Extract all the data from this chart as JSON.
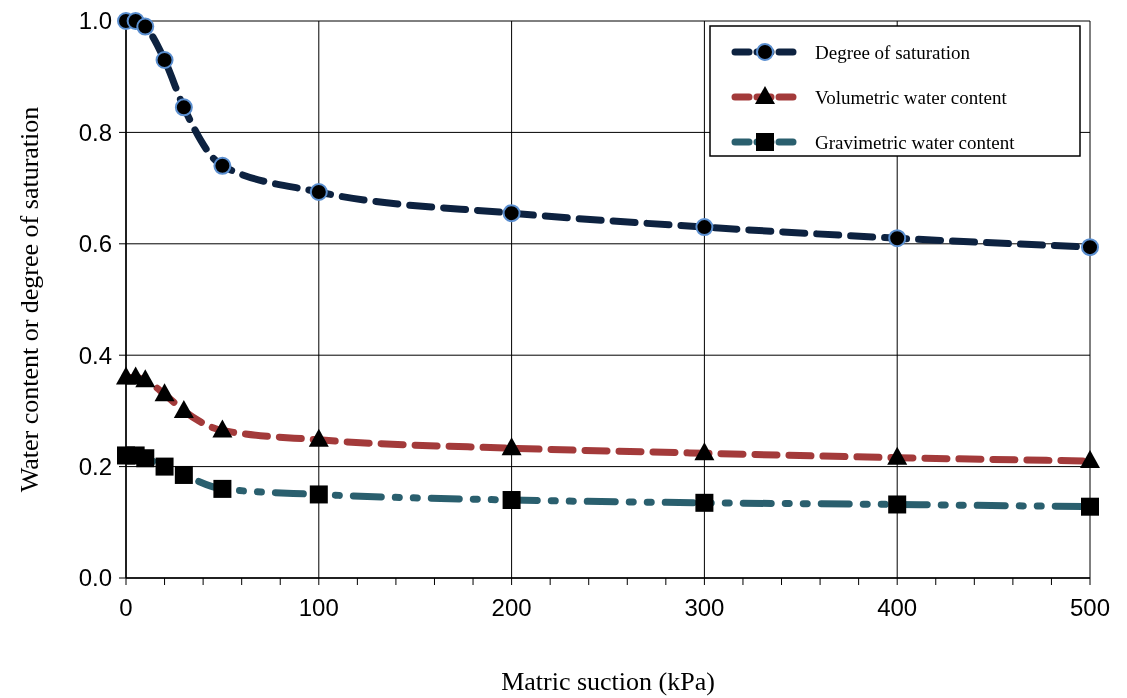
{
  "chart_data": {
    "type": "line",
    "xlabel": "Matric suction (kPa)",
    "ylabel": "Water content or degree of saturation",
    "x": [
      0,
      5,
      10,
      20,
      30,
      50,
      100,
      200,
      300,
      400,
      500
    ],
    "series": [
      {
        "name": "Degree of saturation",
        "color": "#0d2240",
        "marker": "circle",
        "line_style": "dashed",
        "values": [
          1.0,
          1.0,
          0.99,
          0.93,
          0.845,
          0.74,
          0.693,
          0.655,
          0.63,
          0.61,
          0.594
        ]
      },
      {
        "name": "Volumetric water content",
        "color": "#a33a3a",
        "marker": "triangle",
        "line_style": "dashed",
        "values": [
          0.36,
          0.36,
          0.355,
          0.33,
          0.3,
          0.265,
          0.248,
          0.233,
          0.224,
          0.216,
          0.21
        ]
      },
      {
        "name": "Gravimetric water content",
        "color": "#2a5f6e",
        "marker": "square",
        "line_style": "dotted",
        "values": [
          0.22,
          0.22,
          0.215,
          0.2,
          0.185,
          0.16,
          0.15,
          0.14,
          0.135,
          0.132,
          0.128
        ]
      }
    ],
    "xlim": [
      0,
      500
    ],
    "xticks": [
      0,
      {
        "value": 20,
        "label": null
      },
      {
        "value": 40,
        "label": null
      },
      {
        "value": 60,
        "label": null
      },
      {
        "value": 80,
        "label": null
      },
      100,
      {
        "value": 120,
        "label": null
      },
      {
        "value": 140,
        "label": null
      },
      {
        "value": 160,
        "label": null
      },
      {
        "value": 180,
        "label": null
      },
      200,
      {
        "value": 220,
        "label": null
      },
      {
        "value": 240,
        "label": null
      },
      {
        "value": 260,
        "label": null
      },
      {
        "value": 280,
        "label": null
      },
      300,
      {
        "value": 320,
        "label": null
      },
      {
        "value": 340,
        "label": null
      },
      {
        "value": 360,
        "label": null
      },
      {
        "value": 380,
        "label": null
      },
      400,
      {
        "value": 420,
        "label": null
      },
      {
        "value": 440,
        "label": null
      },
      {
        "value": 460,
        "label": null
      },
      {
        "value": 480,
        "label": null
      },
      500
    ],
    "ylim": [
      0,
      1.0
    ],
    "yticks": [
      {
        "value": 0,
        "label": "0.0"
      },
      {
        "value": 0.2,
        "label": "0.2"
      },
      {
        "value": 0.4,
        "label": "0.4"
      },
      {
        "value": 0.6,
        "label": "0.6"
      },
      {
        "value": 0.8,
        "label": "0.8"
      },
      {
        "value": 1.0,
        "label": "1.0"
      }
    ],
    "grid": true,
    "legend": "top right"
  }
}
